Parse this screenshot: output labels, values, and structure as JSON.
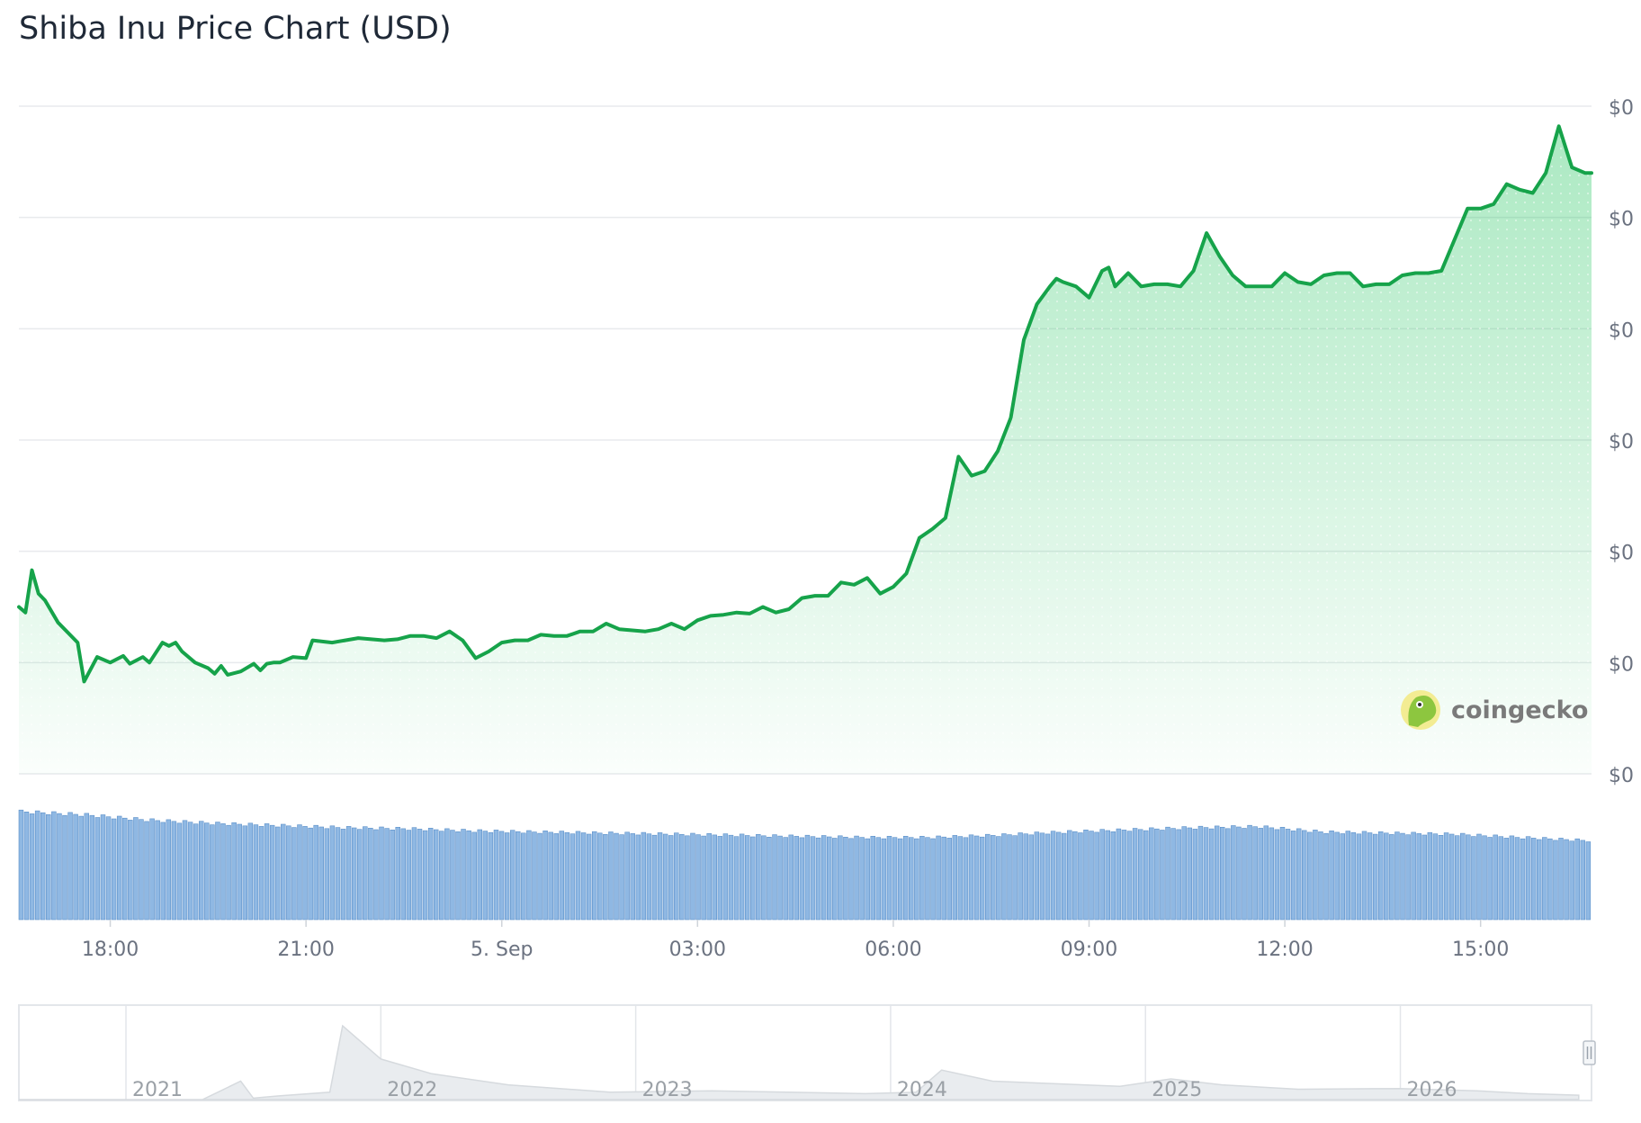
{
  "title": "Shiba Inu Price Chart (USD)",
  "watermark": {
    "text": "coingecko",
    "logo": "coingecko-gecko-logo"
  },
  "colors": {
    "line": "#16a34a",
    "area": "#22c55e",
    "volume": "#8fb8e3",
    "volume_stroke": "#5b8fc9",
    "grid": "#e8eaed",
    "axis_text": "#6b7280",
    "navigator_fill": "#e9ecef",
    "navigator_line": "#d1d5db"
  },
  "chart_data": {
    "type": "line",
    "title": "Shiba Inu Price Chart (USD)",
    "y_axis": {
      "tick_labels": [
        "$0",
        "$0",
        "$0",
        "$0",
        "$0",
        "$0",
        "$0"
      ],
      "side": "right",
      "ylim": [
        0,
        6
      ]
    },
    "x_axis": {
      "tick_labels": [
        "18:00",
        "21:00",
        "5. Sep",
        "03:00",
        "06:00",
        "09:00",
        "12:00",
        "15:00"
      ],
      "tick_positions_hours": [
        1.4,
        4.4,
        7.4,
        10.4,
        13.4,
        16.4,
        19.4,
        22.4
      ]
    },
    "xlim_hours": [
      0,
      24.1
    ],
    "grid": true,
    "legend": "none",
    "series": [
      {
        "kind": "price_line",
        "x_hours": [
          0,
          0.1,
          0.2,
          0.3,
          0.4,
          0.6,
          0.9,
          1.0,
          1.2,
          1.4,
          1.6,
          1.7,
          1.9,
          2.0,
          2.2,
          2.3,
          2.4,
          2.5,
          2.7,
          2.9,
          3.0,
          3.1,
          3.2,
          3.4,
          3.6,
          3.7,
          3.8,
          3.9,
          4.0,
          4.2,
          4.4,
          4.5,
          4.8,
          5.0,
          5.2,
          5.4,
          5.6,
          5.8,
          6.0,
          6.2,
          6.4,
          6.6,
          6.8,
          7.0,
          7.2,
          7.4,
          7.6,
          7.8,
          8.0,
          8.2,
          8.4,
          8.6,
          8.8,
          9.0,
          9.2,
          9.4,
          9.6,
          9.8,
          10.0,
          10.2,
          10.4,
          10.6,
          10.8,
          11.0,
          11.2,
          11.4,
          11.6,
          11.8,
          12.0,
          12.2,
          12.4,
          12.6,
          12.8,
          13.0,
          13.2,
          13.4,
          13.6,
          13.8,
          14.0,
          14.2,
          14.4,
          14.6,
          14.8,
          15.0,
          15.2,
          15.4,
          15.6,
          15.8,
          15.9,
          16.0,
          16.2,
          16.4,
          16.6,
          16.7,
          16.8,
          17.0,
          17.2,
          17.4,
          17.6,
          17.8,
          18.0,
          18.2,
          18.4,
          18.6,
          18.8,
          19.0,
          19.2,
          19.4,
          19.6,
          19.8,
          20.0,
          20.2,
          20.4,
          20.6,
          20.8,
          21.0,
          21.2,
          21.4,
          21.6,
          21.8,
          22.0,
          22.2,
          22.4,
          22.6,
          22.8,
          23.0,
          23.2,
          23.4,
          23.6,
          23.8,
          24.0,
          24.1
        ],
        "y": [
          1.5,
          1.45,
          1.83,
          1.62,
          1.56,
          1.36,
          1.18,
          0.83,
          1.05,
          1.0,
          1.06,
          0.99,
          1.05,
          1.0,
          1.18,
          1.15,
          1.18,
          1.1,
          1.0,
          0.95,
          0.9,
          0.97,
          0.89,
          0.92,
          0.99,
          0.93,
          0.99,
          1.0,
          1.0,
          1.05,
          1.04,
          1.2,
          1.18,
          1.2,
          1.22,
          1.21,
          1.2,
          1.21,
          1.24,
          1.24,
          1.22,
          1.28,
          1.2,
          1.04,
          1.1,
          1.18,
          1.2,
          1.2,
          1.25,
          1.24,
          1.24,
          1.28,
          1.28,
          1.35,
          1.3,
          1.29,
          1.28,
          1.3,
          1.35,
          1.3,
          1.38,
          1.42,
          1.43,
          1.45,
          1.44,
          1.5,
          1.45,
          1.48,
          1.58,
          1.6,
          1.6,
          1.72,
          1.7,
          1.76,
          1.62,
          1.68,
          1.8,
          2.12,
          2.2,
          2.3,
          2.85,
          2.68,
          2.72,
          2.9,
          3.2,
          3.9,
          4.22,
          4.38,
          4.45,
          4.42,
          4.38,
          4.28,
          4.52,
          4.55,
          4.38,
          4.5,
          4.38,
          4.4,
          4.4,
          4.38,
          4.52,
          4.86,
          4.65,
          4.48,
          4.38,
          4.38,
          4.38,
          4.5,
          4.42,
          4.4,
          4.48,
          4.5,
          4.5,
          4.38,
          4.4,
          4.4,
          4.48,
          4.5,
          4.5,
          4.52,
          4.8,
          5.08,
          5.08,
          5.12,
          5.3,
          5.25,
          5.22,
          5.4,
          5.82,
          5.45,
          5.4,
          5.4
        ]
      },
      {
        "kind": "volume_bars",
        "x_hours": [
          0,
          1,
          2,
          3,
          4,
          5,
          6,
          7,
          8,
          9,
          10,
          11,
          12,
          13,
          14,
          15,
          16,
          17,
          18,
          19,
          20,
          21,
          22,
          23,
          24.1
        ],
        "relative_volume": [
          1.0,
          0.97,
          0.92,
          0.89,
          0.87,
          0.85,
          0.84,
          0.82,
          0.81,
          0.8,
          0.79,
          0.78,
          0.77,
          0.76,
          0.76,
          0.78,
          0.81,
          0.83,
          0.85,
          0.86,
          0.81,
          0.8,
          0.79,
          0.76,
          0.73
        ]
      }
    ],
    "navigator": {
      "tick_labels": [
        "2021",
        "2022",
        "2023",
        "2024",
        "2025",
        "2026"
      ],
      "x_years": [
        2020.58,
        2021.0,
        2021.3,
        2021.45,
        2021.5,
        2021.6,
        2021.8,
        2021.85,
        2022.0,
        2022.2,
        2022.5,
        2022.9,
        2023.3,
        2023.9,
        2024.1,
        2024.2,
        2024.4,
        2024.9,
        2025.1,
        2025.3,
        2025.6,
        2026.0,
        2026.3,
        2026.5,
        2026.7
      ],
      "relative_price": [
        0.0,
        0.0,
        0.0,
        0.25,
        0.02,
        0.05,
        0.1,
        1.0,
        0.55,
        0.35,
        0.2,
        0.1,
        0.12,
        0.08,
        0.1,
        0.4,
        0.25,
        0.18,
        0.28,
        0.2,
        0.14,
        0.15,
        0.12,
        0.08,
        0.06
      ]
    }
  }
}
